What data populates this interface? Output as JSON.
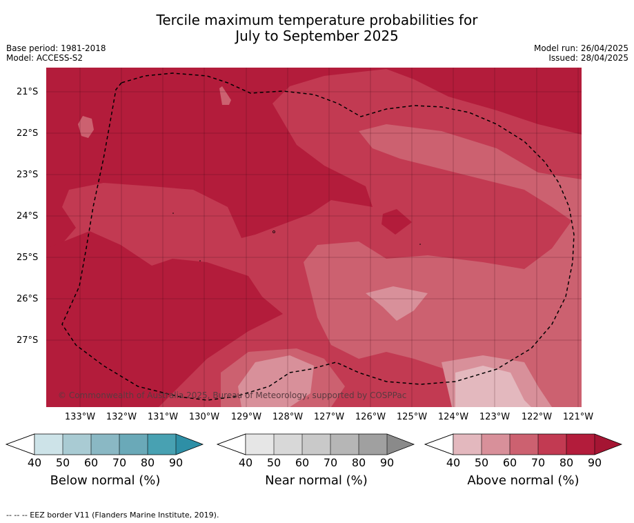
{
  "header": {
    "title_line1": "Tercile maximum temperature probabilities for",
    "title_line2": "July to September 2025",
    "base_period": "Base period: 1981-2018",
    "model": "Model: ACCESS-S2",
    "model_run": "Model run: 26/04/2025",
    "issued": "Issued: 28/04/2025"
  },
  "map": {
    "latitude_labels": [
      "21°S",
      "22°S",
      "23°S",
      "24°S",
      "25°S",
      "26°S",
      "27°S"
    ],
    "longitude_labels": [
      "133°W",
      "132°W",
      "131°W",
      "130°W",
      "129°W",
      "128°W",
      "127°W",
      "126°W",
      "125°W",
      "124°W",
      "123°W",
      "122°W",
      "121°W"
    ],
    "copyright": "© Commonwealth of Australia 2025, Bureau of Meteorology, supported by COSPPac",
    "shading_colors": {
      "above_80_90": "#b31c3b",
      "above_70_80": "#c23a52",
      "above_60_70": "#cc6170",
      "above_50_60": "#d8909a",
      "above_40_50": "#e3b8be"
    }
  },
  "legends": [
    {
      "label": "Below normal (%)",
      "ticks": [
        "40",
        "50",
        "60",
        "70",
        "80",
        "90"
      ],
      "colors": [
        "#cde3e8",
        "#a9cbd3",
        "#8ab8c4",
        "#6aa9b8",
        "#48a1b2",
        "#2e8fa6"
      ]
    },
    {
      "label": "Near normal (%)",
      "ticks": [
        "40",
        "50",
        "60",
        "70",
        "80",
        "90"
      ],
      "colors": [
        "#e6e6e6",
        "#d8d8d8",
        "#c9c9c9",
        "#b6b6b6",
        "#a0a0a0",
        "#8a8a8a"
      ]
    },
    {
      "label": "Above normal (%)",
      "ticks": [
        "40",
        "50",
        "60",
        "70",
        "80",
        "90"
      ],
      "colors": [
        "#e3b8be",
        "#d8909a",
        "#cc6170",
        "#c23a52",
        "#b31c3b",
        "#a51533"
      ]
    }
  ],
  "footnote": "--  --  -- EEZ border V11 (Flanders Marine Institute, 2019)."
}
